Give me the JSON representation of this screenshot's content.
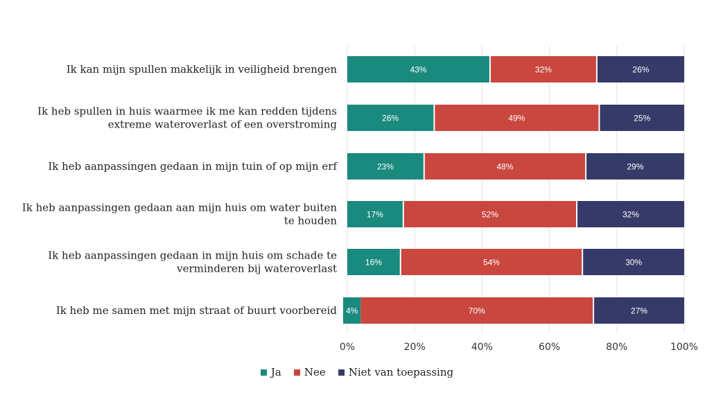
{
  "chart_data": {
    "type": "bar",
    "orientation": "horizontal",
    "stacked": true,
    "categories": [
      [
        "Ik kan mijn spullen makkelijk in veiligheid brengen"
      ],
      [
        "Ik heb spullen in huis waarmee ik me kan redden tijdens",
        "extreme wateroverlast of een overstroming"
      ],
      [
        "Ik heb aanpassingen gedaan in mijn tuin of op mijn erf"
      ],
      [
        "Ik heb aanpassingen gedaan aan mijn huis om water buiten",
        "te houden"
      ],
      [
        "Ik heb aanpassingen gedaan in mijn huis om schade te",
        "verminderen bij wateroverlast"
      ],
      [
        "Ik heb me samen met mijn straat of buurt voorbereid"
      ]
    ],
    "series": [
      {
        "name": "Ja",
        "color": "#1a8a7e",
        "values": [
          43,
          26,
          23,
          17,
          16,
          4
        ]
      },
      {
        "name": "Nee",
        "color": "#c9473f",
        "values": [
          32,
          49,
          48,
          52,
          54,
          70
        ]
      },
      {
        "name": "Niet van toepassing",
        "color": "#363a68",
        "values": [
          26,
          25,
          29,
          32,
          30,
          27
        ]
      }
    ],
    "xlim": [
      0,
      100
    ],
    "xticks": [
      "0%",
      "20%",
      "40%",
      "60%",
      "80%",
      "100%"
    ],
    "grid": true,
    "legend_position": "bottom"
  }
}
